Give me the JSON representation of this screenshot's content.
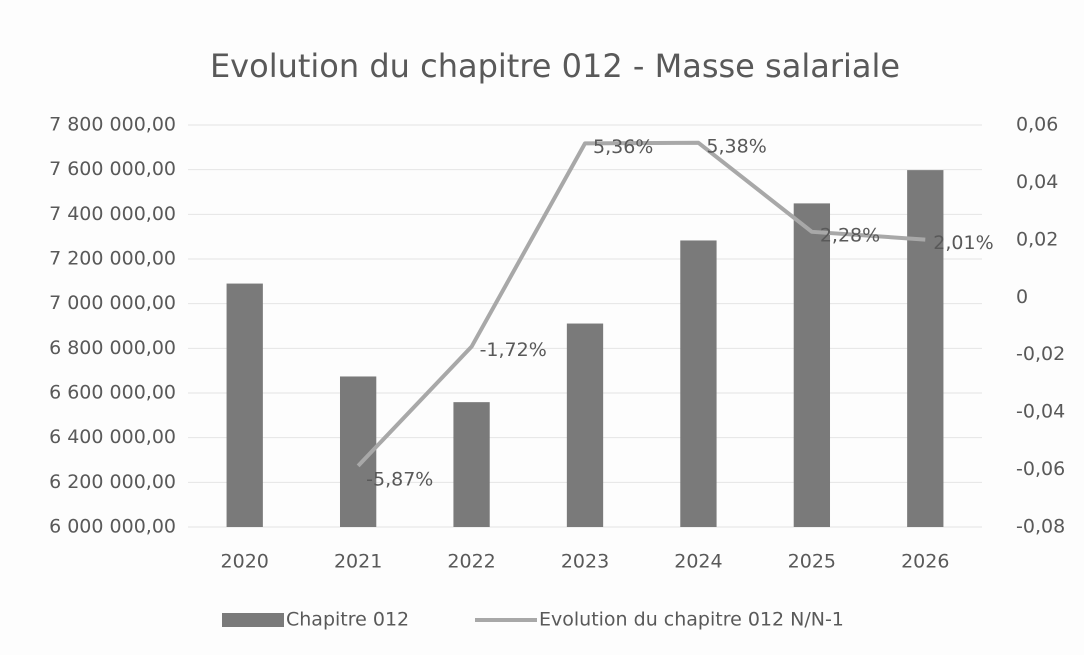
{
  "chart_data": {
    "type": "bar",
    "title": "Evolution du chapitre 012 - Masse salariale",
    "categories": [
      "2020",
      "2021",
      "2022",
      "2023",
      "2024",
      "2025",
      "2026"
    ],
    "series": [
      {
        "name": "Chapitre 012",
        "type": "bar",
        "color": "#7a7a7a",
        "values": [
          7090000,
          6674000,
          6559000,
          6911000,
          7283000,
          7449000,
          7598000
        ]
      },
      {
        "name": "Evolution du chapitre 012 N/N-1",
        "type": "line",
        "color": "#a8a8a8",
        "axis": "y2",
        "values": [
          null,
          -0.0587,
          -0.0172,
          0.0536,
          0.0538,
          0.0228,
          0.0201
        ],
        "value_labels": [
          null,
          "-5,87%",
          "-1,72%",
          "5,36%",
          "5,38%",
          "2,28%",
          "2,01%"
        ]
      }
    ],
    "ylim": [
      6000000,
      7800000
    ],
    "yticks": [
      {
        "value": 6000000,
        "label": "6 000 000,00"
      },
      {
        "value": 6200000,
        "label": "6 200 000,00"
      },
      {
        "value": 6400000,
        "label": "6 400 000,00"
      },
      {
        "value": 6600000,
        "label": "6 600 000,00"
      },
      {
        "value": 6800000,
        "label": "6 800 000,00"
      },
      {
        "value": 7000000,
        "label": "7 000 000,00"
      },
      {
        "value": 7200000,
        "label": "7 200 000,00"
      },
      {
        "value": 7400000,
        "label": "7 400 000,00"
      },
      {
        "value": 7600000,
        "label": "7 600 000,00"
      },
      {
        "value": 7800000,
        "label": "7 800 000,00"
      }
    ],
    "y2lim": [
      -0.08,
      0.06
    ],
    "y2ticks": [
      {
        "value": -0.08,
        "label": "-0,08"
      },
      {
        "value": -0.06,
        "label": "-0,06"
      },
      {
        "value": -0.04,
        "label": "-0,04"
      },
      {
        "value": -0.02,
        "label": "-0,02"
      },
      0,
      {
        "value": 0.02,
        "label": "0,02"
      },
      {
        "value": 0.04,
        "label": "0,04"
      },
      {
        "value": 0.06,
        "label": "0,06"
      }
    ],
    "grid": true,
    "legend": "bottom"
  }
}
